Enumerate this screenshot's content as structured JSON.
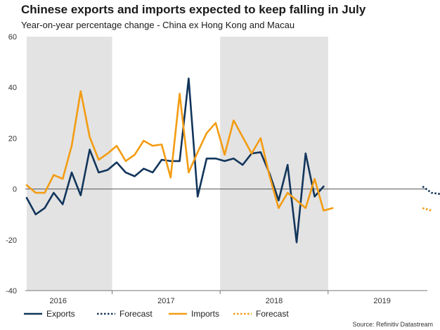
{
  "chart_data": {
    "type": "line",
    "title": "Chinese exports and imports expected to keep falling in July",
    "subtitle": "Year-on-year percentage change - China ex Hong Kong and Macau",
    "source": "Source: Refinitiv Datastream",
    "ylim": [
      -40,
      60
    ],
    "yticks": [
      -40,
      -20,
      0,
      20,
      40,
      60
    ],
    "year_labels": [
      "2016",
      "2017",
      "2018",
      "2019"
    ],
    "year_label_month_index": [
      3.5,
      15.5,
      27.5,
      39.5
    ],
    "shaded_month_ranges": [
      [
        0,
        9.5
      ],
      [
        21.5,
        33.5
      ]
    ],
    "month_count": 45,
    "series": [
      {
        "name": "Exports",
        "color": "#12355b",
        "style": "solid",
        "values": [
          -3.5,
          -10,
          -7.5,
          -1.5,
          -6,
          6.5,
          -2.5,
          15.5,
          6.5,
          7.5,
          10.5,
          6.5,
          5,
          8,
          6.5,
          11.5,
          11,
          11,
          43.5,
          -3,
          12,
          12,
          11,
          12,
          9.5,
          14,
          14.5,
          6,
          -4.5,
          9.5,
          -21,
          14,
          -3,
          1
        ]
      },
      {
        "name": "Forecast",
        "color": "#12355b",
        "style": "dotted",
        "start": 44,
        "values": [
          1,
          -1.5,
          -2
        ]
      },
      {
        "name": "Imports",
        "color": "#f39c12",
        "style": "solid",
        "values": [
          1.5,
          -1.5,
          -1.5,
          5.5,
          4,
          17,
          38.5,
          20.5,
          11.5,
          14,
          17,
          11,
          13.5,
          19,
          17,
          17.5,
          4.5,
          37.5,
          6.5,
          14.5,
          22,
          26,
          13.5,
          27,
          20.5,
          14,
          20,
          5,
          -7.5,
          -1.5,
          -4.5,
          -7.5,
          4,
          -8.5,
          -7.5
        ]
      },
      {
        "name": "Forecast",
        "color": "#f39c12",
        "style": "dotted",
        "start": 44,
        "values": [
          -7.5,
          -8.5
        ]
      }
    ]
  }
}
